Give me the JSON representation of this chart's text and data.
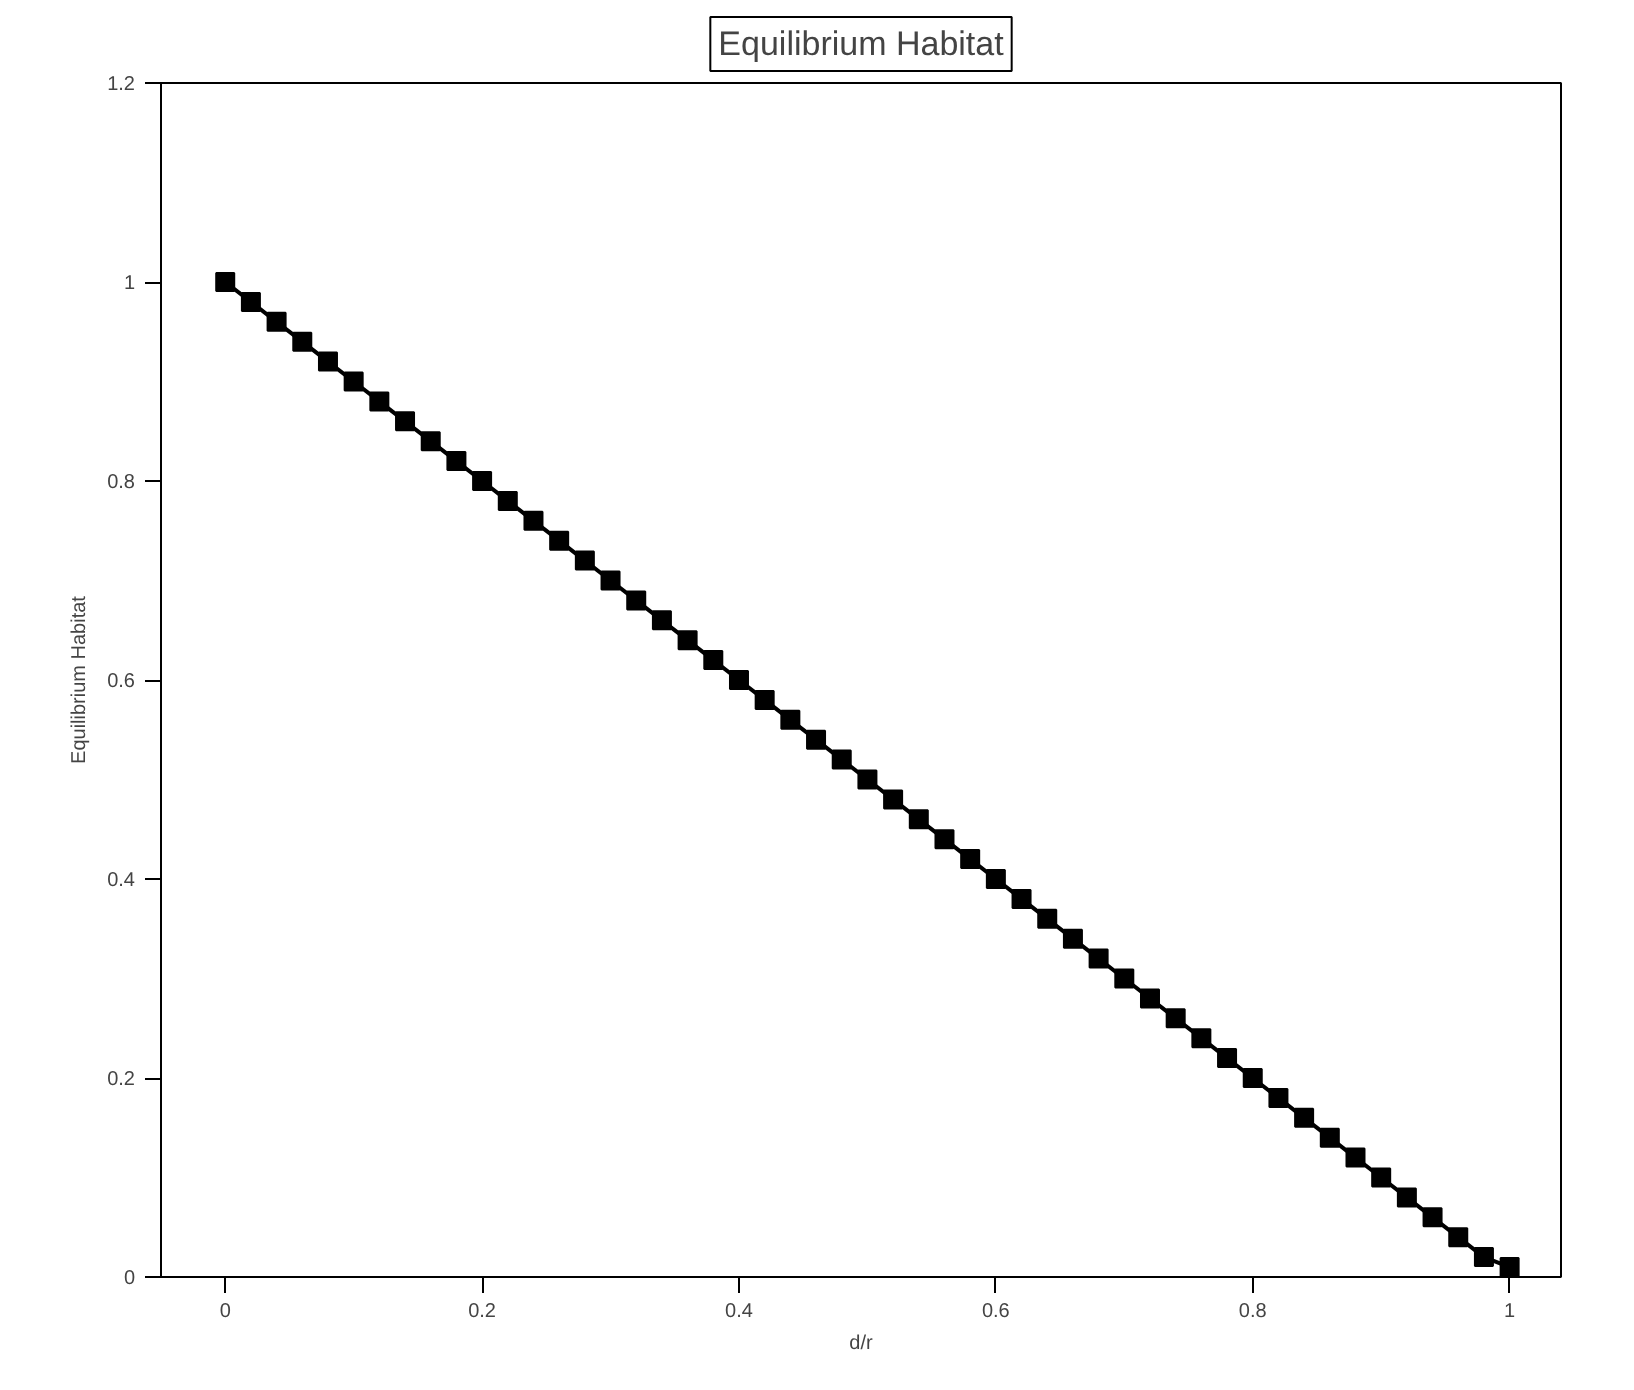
{
  "chart_data": {
    "type": "line",
    "title": "Equilibrium Habitat",
    "xlabel": "d/r",
    "ylabel": "Equilibrium Habitat",
    "x": [
      0,
      0.02,
      0.04,
      0.06,
      0.08,
      0.1,
      0.12,
      0.14,
      0.16,
      0.18,
      0.2,
      0.22,
      0.24,
      0.26,
      0.28,
      0.3,
      0.32,
      0.34,
      0.36,
      0.38,
      0.4,
      0.42,
      0.44,
      0.46,
      0.48,
      0.5,
      0.52,
      0.54,
      0.56,
      0.58,
      0.6,
      0.62,
      0.64,
      0.66,
      0.68,
      0.7,
      0.72,
      0.74,
      0.76,
      0.78,
      0.8,
      0.82,
      0.84,
      0.86,
      0.88,
      0.9,
      0.92,
      0.94,
      0.96,
      0.98,
      1
    ],
    "series": [
      {
        "color": "#000000",
        "values": [
          1,
          0.98,
          0.96,
          0.94,
          0.92,
          0.9,
          0.88,
          0.86,
          0.84,
          0.82,
          0.8,
          0.78,
          0.76,
          0.74,
          0.72,
          0.7,
          0.68,
          0.66,
          0.64,
          0.62,
          0.6,
          0.58,
          0.56,
          0.54,
          0.52,
          0.5,
          0.48,
          0.46,
          0.44,
          0.42,
          0.4,
          0.38,
          0.36,
          0.34,
          0.32,
          0.3,
          0.28,
          0.26,
          0.24,
          0.22,
          0.2,
          0.18,
          0.16,
          0.14,
          0.12,
          0.1,
          0.08,
          0.06,
          0.04,
          0.02,
          0.01
        ]
      }
    ],
    "xlim": [
      -0.05,
      1.04
    ],
    "ylim": [
      0,
      1.2
    ],
    "xticks": [
      0,
      0.2,
      0.4,
      0.6,
      0.8,
      1
    ],
    "yticks": [
      0,
      0.2,
      0.4,
      0.6,
      0.8,
      1,
      1.2
    ],
    "marker": "square",
    "line_style": "solid"
  }
}
